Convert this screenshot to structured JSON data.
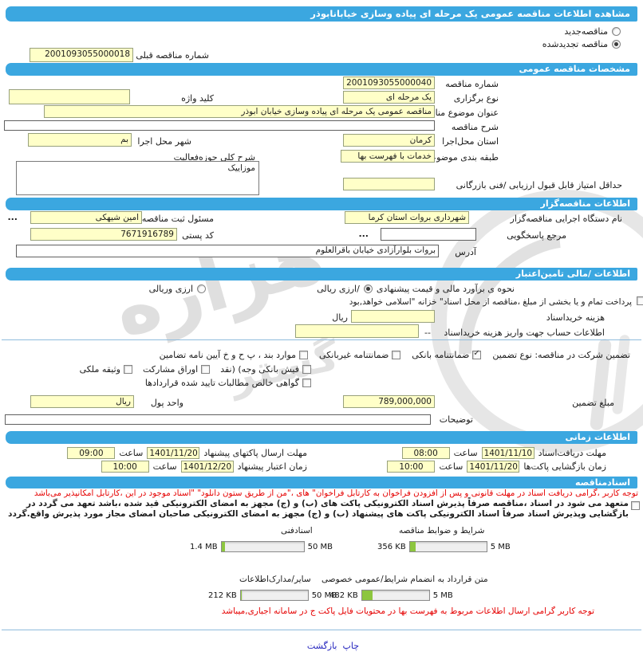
{
  "colors": {
    "accent": "#3BA7E0",
    "field_bg": "#FFFFC8",
    "bar_fill": "#8DC63F",
    "alert": "#E50000",
    "link": "#2121BD"
  },
  "titlebar": {
    "title": "مشاهده اطلاعات مناقصه  عمومی یک مرحله ای پیاده وسازی خیابانابوذر"
  },
  "renewal": {
    "new_label": "مناقصه‌جدید",
    "new_checked": false,
    "renewed_label": "مناقصه تجدیدشده",
    "renewed_checked": true,
    "prev_label": "شماره  مناقصه قبلی",
    "prev_value": "2001093055000018"
  },
  "specs": {
    "header": "مشخصات مناقصه عمومی",
    "number_label": "شماره مناقصه",
    "number_value": "2001093055000040",
    "type_label": "نوع برگزاری",
    "type_value": "یک مرحله ای",
    "keyword_label": "کلید واژه",
    "keyword_value": "",
    "subject_label": "عنوان  موضوع مناقصه/",
    "subject_value": "مناقصه عمومی یک مرحله ای پیاده وسازی خیابان ابوذر",
    "desc_label": "شرح مناقصه",
    "desc_value": "",
    "province_label": "استان محل‌اجرا",
    "province_value": "کرمان",
    "city_label": "شهر محل اجرا",
    "city_value": "بم",
    "category_label": "طبقه بندی موضوعی",
    "category_value": "خدمات با فهرست بها",
    "activity_label": "شرح کلی حوزه‌فعالیت",
    "activity_value": "موزاییک",
    "min_score_label": "حداقل  امتیاز قابل قبول  ارزیابی /فنی بازرگانی",
    "min_score_value": ""
  },
  "agency": {
    "header": "اطلاعات مناقصه‌گزار",
    "name_label": "نام دستگاه اجرایی  مناقصه‌گزار",
    "name_value": "شهرداری بروات استان کرما",
    "registrar_label": "مسئول ثبت مناقصه",
    "registrar_value": "امین شیهکی",
    "lookup": "...",
    "ref_label": "مرجع پاسخگویی",
    "ref_value": "",
    "postal_label": "کد  پستی",
    "postal_value": "7671916789",
    "address_label": "آدرس",
    "address_value": "بروات  بلوارآزادی  خیابان باقرالعلوم"
  },
  "finance": {
    "header": "اطلاعات /مالی تامین‌اعتبار",
    "estimate_label": "نحوه ی برآورد مالی و قیمت پیشنهادی",
    "opt_rial": "/ارزی ریالی",
    "rial_checked": true,
    "opt_both": "ارزی وریالی",
    "both_checked": false,
    "treasury_note": "پرداخت تمام و یا بخشی از مبلغ ،مناقصه از محل اسناد\" خزانه \"اسلامی خواهد,بود",
    "fee_label": "هزینه خریداسناد",
    "fee_value": "",
    "fee_unit": "ریال",
    "account_label": "اطلاعات حساب جهت واریز هزینه خریداسناد",
    "account_dash": "--",
    "account_value": ""
  },
  "guarantee": {
    "intro": "تضمین شرکت در مناقصه:   نوع    تضمین",
    "options": [
      {
        "label": "ضمانتنامه  بانکی",
        "checked": true
      },
      {
        "label": "ضمانتنامه  غیربانکی",
        "checked": false
      },
      {
        "label": "موارد  بند ، پ ح و خ آیین نامه تضامین",
        "checked": false
      },
      {
        "label": "فیش  بانکی وجه) (نقد",
        "checked": false
      },
      {
        "label": "اوراق  مشارکت",
        "checked": false
      },
      {
        "label": "وثیقه ملکی",
        "checked": false
      },
      {
        "label": "گواهی  خالص مطالبات تایید شده قراردادها",
        "checked": false
      }
    ],
    "amount_label": "مبلغ تضمین",
    "amount_value": "789,000,000",
    "currency_label": "واحد پول",
    "currency_value": "ریال",
    "notes_label": "توضیحات",
    "notes_value": ""
  },
  "times": {
    "header": "اطلاعات زمانی",
    "hour_label": "ساعت",
    "items": [
      {
        "label": "مهلت  دریافت‌اسناد",
        "date": "1401/11/10",
        "time": "08:00"
      },
      {
        "label": "مهلت    ارسال  پاکتهای پیشنهاد",
        "date": "1401/11/20",
        "time": "09:00"
      },
      {
        "label": "زمان  بازگشایی پاکت‌ها",
        "date": "1401/11/20",
        "time": "10:00"
      },
      {
        "label": "زمان    اعتبار پیشنهاد",
        "date": "1401/12/20",
        "time": "10:00"
      }
    ]
  },
  "docs": {
    "header": "اسنادمناقصه",
    "notice1": "توجه کاربر ،گرامی دریافت اسناد در مهلت قانونی و پس از افزودن فراخوان به کارتابل فراخوان\" های ،\"من از طریق ستون دانلود\" \"اسناد موجود در این ،کارتابل امکانپذیر می‌باشد",
    "commitment": "متعهد می شود در اسناد ،مناقصه صرفاً پذیرش اسناد الکترونیکی پاکت های (ب) و (ج) مجهز به امضای الکترونیکی قید شده ،باشد تعهد می گردد در بازگشایی وپذیرش اسناد صرفاً اسناد الکترونیکی پاکت های پیشنهاد (ب) و (ج) مجهز به امضای الکترونیکی صاحبان امضای مجاز مورد پذیرش واقع.گردد",
    "commitment_checked": false,
    "uploads": [
      {
        "label": "شرایط و ضوابط مناقصه",
        "used": "356 KB",
        "max": "5 MB",
        "percent": 8
      },
      {
        "label": "اسنادفنی",
        "used": "1.4 MB",
        "max": "50 MB",
        "percent": 4
      },
      {
        "label": "متن قرارداد به  انضمام شرایط/عمومی خصوصی",
        "used": "482 KB",
        "max": "5 MB",
        "percent": 16
      },
      {
        "label": "سایر/مدارک‌اطلاعات",
        "used": "212 KB",
        "max": "50 MB",
        "percent": 2
      }
    ],
    "notice2": "توجه کاربر گرامی ارسال اطلاعات مربوط به فهرست بها در محتویات فایل پاکت ج در سامانه اجباری,میباشد"
  },
  "footer": {
    "print": "چاپ",
    "back": "بازگشت"
  },
  "watermark": {
    "text1": "هزاره",
    "text2": "گستر"
  }
}
